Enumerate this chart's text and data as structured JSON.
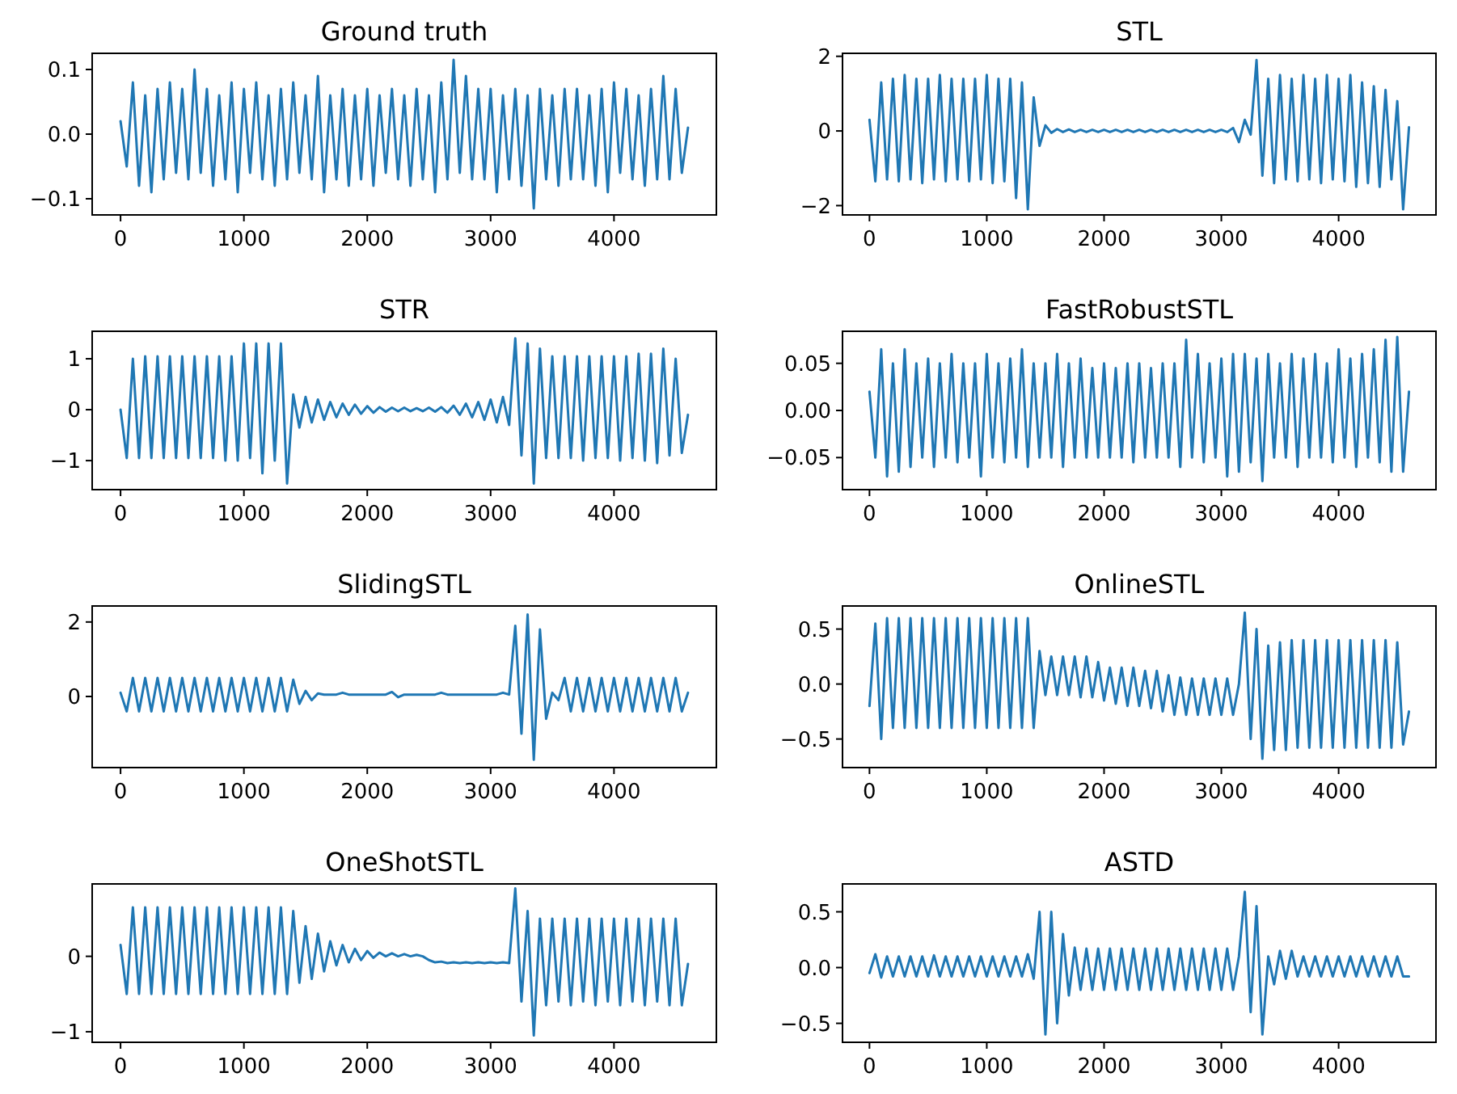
{
  "chart_data": [
    {
      "type": "line",
      "title": "Ground truth",
      "xlim": [
        -230,
        4830
      ],
      "xticks": [
        0,
        1000,
        2000,
        3000,
        4000
      ],
      "ylim": [
        -0.125,
        0.125
      ],
      "yticks": [
        {
          "value": -0.1,
          "label": "−0.1"
        },
        {
          "value": 0,
          "label": "0.0"
        },
        0.1
      ],
      "x": [
        0,
        50,
        100,
        150,
        200,
        250,
        300,
        350,
        400,
        450,
        500,
        550,
        600,
        650,
        700,
        750,
        800,
        850,
        900,
        950,
        1000,
        1050,
        1100,
        1150,
        1200,
        1250,
        1300,
        1350,
        1400,
        1450,
        1500,
        1550,
        1600,
        1650,
        1700,
        1750,
        1800,
        1850,
        1900,
        1950,
        2000,
        2050,
        2100,
        2150,
        2200,
        2250,
        2300,
        2350,
        2400,
        2450,
        2500,
        2550,
        2600,
        2650,
        2700,
        2750,
        2800,
        2850,
        2900,
        2950,
        3000,
        3050,
        3100,
        3150,
        3200,
        3250,
        3300,
        3350,
        3400,
        3450,
        3500,
        3550,
        3600,
        3650,
        3700,
        3750,
        3800,
        3850,
        3900,
        3950,
        4000,
        4050,
        4100,
        4150,
        4200,
        4250,
        4300,
        4350,
        4400,
        4450,
        4500,
        4550,
        4600
      ],
      "series": [
        {
          "color": "#1f77b4",
          "values": [
            0.02,
            -0.05,
            0.08,
            -0.08,
            0.06,
            -0.09,
            0.07,
            -0.07,
            0.08,
            -0.06,
            0.07,
            -0.07,
            0.1,
            -0.06,
            0.07,
            -0.08,
            0.06,
            -0.07,
            0.08,
            -0.09,
            0.07,
            -0.06,
            0.08,
            -0.07,
            0.06,
            -0.08,
            0.07,
            -0.07,
            0.08,
            -0.06,
            0.06,
            -0.07,
            0.09,
            -0.09,
            0.06,
            -0.07,
            0.07,
            -0.08,
            0.06,
            -0.07,
            0.07,
            -0.08,
            0.06,
            -0.06,
            0.07,
            -0.07,
            0.06,
            -0.08,
            0.07,
            -0.07,
            0.06,
            -0.09,
            0.08,
            -0.07,
            0.115,
            -0.06,
            0.09,
            -0.07,
            0.07,
            -0.07,
            0.07,
            -0.09,
            0.06,
            -0.07,
            0.07,
            -0.08,
            0.06,
            -0.115,
            0.07,
            -0.07,
            0.06,
            -0.08,
            0.07,
            -0.07,
            0.07,
            -0.07,
            0.06,
            -0.08,
            0.07,
            -0.09,
            0.08,
            -0.06,
            0.07,
            -0.07,
            0.06,
            -0.08,
            0.07,
            -0.07,
            0.09,
            -0.07,
            0.07,
            -0.06,
            0.01
          ]
        }
      ]
    },
    {
      "type": "line",
      "title": "STL",
      "xlim": [
        -230,
        4830
      ],
      "xticks": [
        0,
        1000,
        2000,
        3000,
        4000
      ],
      "ylim": [
        -2.25,
        2.08
      ],
      "yticks": [
        {
          "value": -2,
          "label": "−2"
        },
        0,
        2
      ],
      "x": [
        0,
        50,
        100,
        150,
        200,
        250,
        300,
        350,
        400,
        450,
        500,
        550,
        600,
        650,
        700,
        750,
        800,
        850,
        900,
        950,
        1000,
        1050,
        1100,
        1150,
        1200,
        1250,
        1300,
        1350,
        1400,
        1450,
        1500,
        1550,
        1600,
        1650,
        1700,
        1750,
        1800,
        1850,
        1900,
        1950,
        2000,
        2050,
        2100,
        2150,
        2200,
        2250,
        2300,
        2350,
        2400,
        2450,
        2500,
        2550,
        2600,
        2650,
        2700,
        2750,
        2800,
        2850,
        2900,
        2950,
        3000,
        3050,
        3100,
        3150,
        3200,
        3250,
        3300,
        3350,
        3400,
        3450,
        3500,
        3550,
        3600,
        3650,
        3700,
        3750,
        3800,
        3850,
        3900,
        3950,
        4000,
        4050,
        4100,
        4150,
        4200,
        4250,
        4300,
        4350,
        4400,
        4450,
        4500,
        4550,
        4600
      ],
      "series": [
        {
          "color": "#1f77b4",
          "values": [
            0.3,
            -1.35,
            1.3,
            -1.3,
            1.4,
            -1.35,
            1.5,
            -1.3,
            1.4,
            -1.4,
            1.4,
            -1.3,
            1.5,
            -1.35,
            1.4,
            -1.3,
            1.4,
            -1.35,
            1.4,
            -1.3,
            1.5,
            -1.4,
            1.4,
            -1.35,
            1.4,
            -1.8,
            1.3,
            -2.1,
            0.9,
            -0.4,
            0.15,
            -0.05,
            0.05,
            -0.03,
            0.04,
            -0.03,
            0.03,
            -0.03,
            0.03,
            -0.03,
            0.03,
            -0.03,
            0.03,
            -0.03,
            0.03,
            -0.03,
            0.03,
            -0.03,
            0.03,
            -0.03,
            0.03,
            -0.03,
            0.03,
            -0.03,
            0.03,
            -0.03,
            0.03,
            -0.03,
            0.03,
            -0.03,
            0.03,
            -0.03,
            0.08,
            -0.3,
            0.3,
            -0.1,
            1.9,
            -1.2,
            1.4,
            -1.4,
            1.5,
            -1.3,
            1.4,
            -1.35,
            1.5,
            -1.3,
            1.4,
            -1.4,
            1.5,
            -1.3,
            1.4,
            -1.35,
            1.5,
            -1.5,
            1.3,
            -1.4,
            1.2,
            -1.5,
            1.1,
            -1.3,
            0.8,
            -2.1,
            0.1
          ]
        }
      ]
    },
    {
      "type": "line",
      "title": "STR",
      "xlim": [
        -230,
        4830
      ],
      "xticks": [
        0,
        1000,
        2000,
        3000,
        4000
      ],
      "ylim": [
        -1.57,
        1.54
      ],
      "yticks": [
        {
          "value": -1,
          "label": "−1"
        },
        0,
        1
      ],
      "x": [
        0,
        50,
        100,
        150,
        200,
        250,
        300,
        350,
        400,
        450,
        500,
        550,
        600,
        650,
        700,
        750,
        800,
        850,
        900,
        950,
        1000,
        1050,
        1100,
        1150,
        1200,
        1250,
        1300,
        1350,
        1400,
        1450,
        1500,
        1550,
        1600,
        1650,
        1700,
        1750,
        1800,
        1850,
        1900,
        1950,
        2000,
        2050,
        2100,
        2150,
        2200,
        2250,
        2300,
        2350,
        2400,
        2450,
        2500,
        2550,
        2600,
        2650,
        2700,
        2750,
        2800,
        2850,
        2900,
        2950,
        3000,
        3050,
        3100,
        3150,
        3200,
        3250,
        3300,
        3350,
        3400,
        3450,
        3500,
        3550,
        3600,
        3650,
        3700,
        3750,
        3800,
        3850,
        3900,
        3950,
        4000,
        4050,
        4100,
        4150,
        4200,
        4250,
        4300,
        4350,
        4400,
        4450,
        4500,
        4550,
        4600
      ],
      "series": [
        {
          "color": "#1f77b4",
          "values": [
            0,
            -0.95,
            1.0,
            -0.95,
            1.05,
            -0.95,
            1.05,
            -0.95,
            1.05,
            -0.95,
            1.05,
            -0.95,
            1.05,
            -0.95,
            1.05,
            -0.95,
            1.05,
            -1.0,
            1.05,
            -1.0,
            1.3,
            -0.95,
            1.3,
            -1.25,
            1.3,
            -1.0,
            1.3,
            -1.45,
            0.3,
            -0.35,
            0.25,
            -0.25,
            0.2,
            -0.2,
            0.15,
            -0.15,
            0.12,
            -0.1,
            0.1,
            -0.08,
            0.07,
            -0.06,
            0.05,
            -0.04,
            0.04,
            -0.03,
            0.04,
            -0.03,
            0.03,
            -0.03,
            0.04,
            -0.04,
            0.05,
            -0.06,
            0.08,
            -0.1,
            0.12,
            -0.15,
            0.15,
            -0.2,
            0.2,
            -0.25,
            0.25,
            -0.3,
            1.4,
            -0.9,
            1.3,
            -1.45,
            1.2,
            -0.95,
            1.05,
            -0.95,
            1.05,
            -0.95,
            1.05,
            -1.0,
            1.05,
            -0.95,
            1.05,
            -0.95,
            1.05,
            -1.0,
            1.05,
            -0.95,
            1.1,
            -1.0,
            1.1,
            -1.05,
            1.2,
            -0.9,
            1.0,
            -0.85,
            -0.1
          ]
        }
      ]
    },
    {
      "type": "line",
      "title": "FastRobustSTL",
      "xlim": [
        -230,
        4830
      ],
      "xticks": [
        0,
        1000,
        2000,
        3000,
        4000
      ],
      "ylim": [
        -0.084,
        0.084
      ],
      "yticks": [
        {
          "value": -0.05,
          "label": "−0.05"
        },
        {
          "value": 0,
          "label": "0.00"
        },
        0.05
      ],
      "x": [
        0,
        50,
        100,
        150,
        200,
        250,
        300,
        350,
        400,
        450,
        500,
        550,
        600,
        650,
        700,
        750,
        800,
        850,
        900,
        950,
        1000,
        1050,
        1100,
        1150,
        1200,
        1250,
        1300,
        1350,
        1400,
        1450,
        1500,
        1550,
        1600,
        1650,
        1700,
        1750,
        1800,
        1850,
        1900,
        1950,
        2000,
        2050,
        2100,
        2150,
        2200,
        2250,
        2300,
        2350,
        2400,
        2450,
        2500,
        2550,
        2600,
        2650,
        2700,
        2750,
        2800,
        2850,
        2900,
        2950,
        3000,
        3050,
        3100,
        3150,
        3200,
        3250,
        3300,
        3350,
        3400,
        3450,
        3500,
        3550,
        3600,
        3650,
        3700,
        3750,
        3800,
        3850,
        3900,
        3950,
        4000,
        4050,
        4100,
        4150,
        4200,
        4250,
        4300,
        4350,
        4400,
        4450,
        4500,
        4550,
        4600
      ],
      "series": [
        {
          "color": "#1f77b4",
          "values": [
            0.02,
            -0.05,
            0.065,
            -0.07,
            0.05,
            -0.065,
            0.065,
            -0.06,
            0.05,
            -0.05,
            0.055,
            -0.06,
            0.05,
            -0.05,
            0.06,
            -0.055,
            0.05,
            -0.05,
            0.05,
            -0.07,
            0.06,
            -0.05,
            0.05,
            -0.055,
            0.055,
            -0.05,
            0.065,
            -0.06,
            0.05,
            -0.05,
            0.05,
            -0.05,
            0.06,
            -0.06,
            0.05,
            -0.05,
            0.055,
            -0.05,
            0.045,
            -0.05,
            0.05,
            -0.05,
            0.045,
            -0.05,
            0.05,
            -0.055,
            0.05,
            -0.05,
            0.045,
            -0.05,
            0.05,
            -0.05,
            0.05,
            -0.06,
            0.075,
            -0.05,
            0.06,
            -0.055,
            0.05,
            -0.05,
            0.055,
            -0.07,
            0.06,
            -0.065,
            0.06,
            -0.055,
            0.055,
            -0.075,
            0.06,
            -0.05,
            0.05,
            -0.05,
            0.06,
            -0.06,
            0.055,
            -0.05,
            0.06,
            -0.05,
            0.05,
            -0.055,
            0.065,
            -0.05,
            0.055,
            -0.06,
            0.06,
            -0.05,
            0.065,
            -0.055,
            0.075,
            -0.065,
            0.078,
            -0.065,
            0.02
          ]
        }
      ]
    },
    {
      "type": "line",
      "title": "SlidingSTL",
      "xlim": [
        -230,
        4830
      ],
      "xticks": [
        0,
        1000,
        2000,
        3000,
        4000
      ],
      "ylim": [
        -1.91,
        2.43
      ],
      "yticks": [
        0,
        2
      ],
      "x": [
        0,
        50,
        100,
        150,
        200,
        250,
        300,
        350,
        400,
        450,
        500,
        550,
        600,
        650,
        700,
        750,
        800,
        850,
        900,
        950,
        1000,
        1050,
        1100,
        1150,
        1200,
        1250,
        1300,
        1350,
        1400,
        1450,
        1500,
        1550,
        1600,
        1650,
        1700,
        1750,
        1800,
        1850,
        1900,
        1950,
        2000,
        2050,
        2100,
        2150,
        2200,
        2250,
        2300,
        2350,
        2400,
        2450,
        2500,
        2550,
        2600,
        2650,
        2700,
        2750,
        2800,
        2850,
        2900,
        2950,
        3000,
        3050,
        3100,
        3150,
        3200,
        3250,
        3300,
        3350,
        3400,
        3450,
        3500,
        3550,
        3600,
        3650,
        3700,
        3750,
        3800,
        3850,
        3900,
        3950,
        4000,
        4050,
        4100,
        4150,
        4200,
        4250,
        4300,
        4350,
        4400,
        4450,
        4500,
        4550,
        4600
      ],
      "series": [
        {
          "color": "#1f77b4",
          "values": [
            0.1,
            -0.4,
            0.5,
            -0.4,
            0.5,
            -0.4,
            0.5,
            -0.4,
            0.5,
            -0.4,
            0.5,
            -0.4,
            0.5,
            -0.4,
            0.5,
            -0.4,
            0.5,
            -0.4,
            0.5,
            -0.4,
            0.5,
            -0.4,
            0.5,
            -0.4,
            0.5,
            -0.4,
            0.5,
            -0.4,
            0.45,
            -0.2,
            0.15,
            -0.1,
            0.08,
            0.05,
            0.05,
            0.05,
            0.1,
            0.05,
            0.05,
            0.05,
            0.05,
            0.05,
            0.05,
            0.05,
            0.12,
            -0.02,
            0.05,
            0.05,
            0.05,
            0.05,
            0.05,
            0.05,
            0.1,
            0.05,
            0.05,
            0.05,
            0.05,
            0.05,
            0.05,
            0.05,
            0.05,
            0.05,
            0.1,
            0.05,
            1.9,
            -1.0,
            2.2,
            -1.7,
            1.8,
            -0.6,
            0.1,
            -0.1,
            0.5,
            -0.4,
            0.5,
            -0.4,
            0.5,
            -0.4,
            0.5,
            -0.4,
            0.5,
            -0.4,
            0.5,
            -0.4,
            0.5,
            -0.4,
            0.5,
            -0.4,
            0.5,
            -0.4,
            0.5,
            -0.4,
            0.1
          ]
        }
      ]
    },
    {
      "type": "line",
      "title": "OnlineSTL",
      "xlim": [
        -230,
        4830
      ],
      "xticks": [
        0,
        1000,
        2000,
        3000,
        4000
      ],
      "ylim": [
        -0.76,
        0.71
      ],
      "yticks": [
        {
          "value": -0.5,
          "label": "−0.5"
        },
        {
          "value": 0,
          "label": "0.0"
        },
        0.5
      ],
      "x": [
        0,
        50,
        100,
        150,
        200,
        250,
        300,
        350,
        400,
        450,
        500,
        550,
        600,
        650,
        700,
        750,
        800,
        850,
        900,
        950,
        1000,
        1050,
        1100,
        1150,
        1200,
        1250,
        1300,
        1350,
        1400,
        1450,
        1500,
        1550,
        1600,
        1650,
        1700,
        1750,
        1800,
        1850,
        1900,
        1950,
        2000,
        2050,
        2100,
        2150,
        2200,
        2250,
        2300,
        2350,
        2400,
        2450,
        2500,
        2550,
        2600,
        2650,
        2700,
        2750,
        2800,
        2850,
        2900,
        2950,
        3000,
        3050,
        3100,
        3150,
        3200,
        3250,
        3300,
        3350,
        3400,
        3450,
        3500,
        3550,
        3600,
        3650,
        3700,
        3750,
        3800,
        3850,
        3900,
        3950,
        4000,
        4050,
        4100,
        4150,
        4200,
        4250,
        4300,
        4350,
        4400,
        4450,
        4500,
        4550,
        4600
      ],
      "series": [
        {
          "color": "#1f77b4",
          "values": [
            -0.2,
            0.55,
            -0.5,
            0.6,
            -0.4,
            0.6,
            -0.4,
            0.6,
            -0.4,
            0.6,
            -0.4,
            0.6,
            -0.4,
            0.6,
            -0.4,
            0.6,
            -0.4,
            0.6,
            -0.4,
            0.6,
            -0.4,
            0.6,
            -0.4,
            0.6,
            -0.4,
            0.6,
            -0.4,
            0.6,
            -0.4,
            0.3,
            -0.1,
            0.25,
            -0.1,
            0.25,
            -0.1,
            0.25,
            -0.12,
            0.25,
            -0.12,
            0.2,
            -0.15,
            0.15,
            -0.18,
            0.15,
            -0.2,
            0.15,
            -0.2,
            0.12,
            -0.22,
            0.12,
            -0.25,
            0.08,
            -0.28,
            0.06,
            -0.28,
            0.05,
            -0.28,
            0.05,
            -0.28,
            0.05,
            -0.28,
            0.05,
            -0.28,
            0.0,
            0.65,
            -0.5,
            0.5,
            -0.68,
            0.35,
            -0.6,
            0.38,
            -0.6,
            0.4,
            -0.58,
            0.4,
            -0.58,
            0.4,
            -0.58,
            0.4,
            -0.58,
            0.4,
            -0.58,
            0.4,
            -0.58,
            0.4,
            -0.58,
            0.4,
            -0.58,
            0.4,
            -0.58,
            0.38,
            -0.55,
            -0.25
          ]
        }
      ]
    },
    {
      "type": "line",
      "title": "OneShotSTL",
      "xlim": [
        -230,
        4830
      ],
      "xticks": [
        0,
        1000,
        2000,
        3000,
        4000
      ],
      "ylim": [
        -1.14,
        0.96
      ],
      "yticks": [
        {
          "value": -1,
          "label": "−1"
        },
        0
      ],
      "x": [
        0,
        50,
        100,
        150,
        200,
        250,
        300,
        350,
        400,
        450,
        500,
        550,
        600,
        650,
        700,
        750,
        800,
        850,
        900,
        950,
        1000,
        1050,
        1100,
        1150,
        1200,
        1250,
        1300,
        1350,
        1400,
        1450,
        1500,
        1550,
        1600,
        1650,
        1700,
        1750,
        1800,
        1850,
        1900,
        1950,
        2000,
        2050,
        2100,
        2150,
        2200,
        2250,
        2300,
        2350,
        2400,
        2450,
        2500,
        2550,
        2600,
        2650,
        2700,
        2750,
        2800,
        2850,
        2900,
        2950,
        3000,
        3050,
        3100,
        3150,
        3200,
        3250,
        3300,
        3350,
        3400,
        3450,
        3500,
        3550,
        3600,
        3650,
        3700,
        3750,
        3800,
        3850,
        3900,
        3950,
        4000,
        4050,
        4100,
        4150,
        4200,
        4250,
        4300,
        4350,
        4400,
        4450,
        4500,
        4550,
        4600
      ],
      "series": [
        {
          "color": "#1f77b4",
          "values": [
            0.15,
            -0.5,
            0.65,
            -0.5,
            0.65,
            -0.5,
            0.65,
            -0.5,
            0.65,
            -0.5,
            0.65,
            -0.5,
            0.65,
            -0.5,
            0.65,
            -0.5,
            0.65,
            -0.5,
            0.65,
            -0.5,
            0.65,
            -0.5,
            0.65,
            -0.5,
            0.65,
            -0.5,
            0.65,
            -0.5,
            0.6,
            -0.35,
            0.4,
            -0.3,
            0.3,
            -0.2,
            0.2,
            -0.12,
            0.15,
            -0.08,
            0.1,
            -0.05,
            0.07,
            -0.02,
            0.05,
            0,
            0.04,
            0,
            0.03,
            0,
            0.02,
            0,
            -0.05,
            -0.08,
            -0.07,
            -0.09,
            -0.08,
            -0.09,
            -0.08,
            -0.09,
            -0.08,
            -0.09,
            -0.08,
            -0.09,
            -0.08,
            -0.09,
            0.9,
            -0.6,
            0.6,
            -1.05,
            0.5,
            -0.65,
            0.5,
            -0.6,
            0.5,
            -0.65,
            0.5,
            -0.6,
            0.5,
            -0.65,
            0.5,
            -0.6,
            0.5,
            -0.65,
            0.5,
            -0.6,
            0.5,
            -0.65,
            0.5,
            -0.6,
            0.5,
            -0.65,
            0.5,
            -0.65,
            -0.1
          ]
        }
      ]
    },
    {
      "type": "line",
      "title": "ASTD",
      "xlim": [
        -230,
        4830
      ],
      "xticks": [
        0,
        1000,
        2000,
        3000,
        4000
      ],
      "ylim": [
        -0.67,
        0.75
      ],
      "yticks": [
        {
          "value": -0.5,
          "label": "−0.5"
        },
        {
          "value": 0,
          "label": "0.0"
        },
        0.5
      ],
      "x": [
        0,
        50,
        100,
        150,
        200,
        250,
        300,
        350,
        400,
        450,
        500,
        550,
        600,
        650,
        700,
        750,
        800,
        850,
        900,
        950,
        1000,
        1050,
        1100,
        1150,
        1200,
        1250,
        1300,
        1350,
        1400,
        1450,
        1500,
        1550,
        1600,
        1650,
        1700,
        1750,
        1800,
        1850,
        1900,
        1950,
        2000,
        2050,
        2100,
        2150,
        2200,
        2250,
        2300,
        2350,
        2400,
        2450,
        2500,
        2550,
        2600,
        2650,
        2700,
        2750,
        2800,
        2850,
        2900,
        2950,
        3000,
        3050,
        3100,
        3150,
        3200,
        3250,
        3300,
        3350,
        3400,
        3450,
        3500,
        3550,
        3600,
        3650,
        3700,
        3750,
        3800,
        3850,
        3900,
        3950,
        4000,
        4050,
        4100,
        4150,
        4200,
        4250,
        4300,
        4350,
        4400,
        4450,
        4500,
        4550,
        4600
      ],
      "series": [
        {
          "color": "#1f77b4",
          "values": [
            -0.05,
            0.12,
            -0.09,
            0.1,
            -0.08,
            0.1,
            -0.08,
            0.1,
            -0.08,
            0.1,
            -0.08,
            0.11,
            -0.08,
            0.1,
            -0.08,
            0.1,
            -0.08,
            0.1,
            -0.08,
            0.1,
            -0.08,
            0.1,
            -0.08,
            0.1,
            -0.08,
            0.1,
            -0.08,
            0.12,
            -0.1,
            0.5,
            -0.6,
            0.5,
            -0.5,
            0.3,
            -0.25,
            0.18,
            -0.2,
            0.17,
            -0.2,
            0.17,
            -0.2,
            0.17,
            -0.2,
            0.17,
            -0.2,
            0.17,
            -0.2,
            0.17,
            -0.2,
            0.17,
            -0.2,
            0.17,
            -0.2,
            0.17,
            -0.2,
            0.17,
            -0.2,
            0.17,
            -0.2,
            0.17,
            -0.2,
            0.17,
            -0.2,
            0.1,
            0.68,
            -0.4,
            0.55,
            -0.6,
            0.1,
            -0.15,
            0.15,
            -0.1,
            0.15,
            -0.08,
            0.1,
            -0.08,
            0.1,
            -0.08,
            0.1,
            -0.08,
            0.1,
            -0.08,
            0.1,
            -0.08,
            0.1,
            -0.08,
            0.1,
            -0.08,
            0.1,
            -0.08,
            0.1,
            -0.08,
            -0.08
          ]
        }
      ]
    }
  ]
}
